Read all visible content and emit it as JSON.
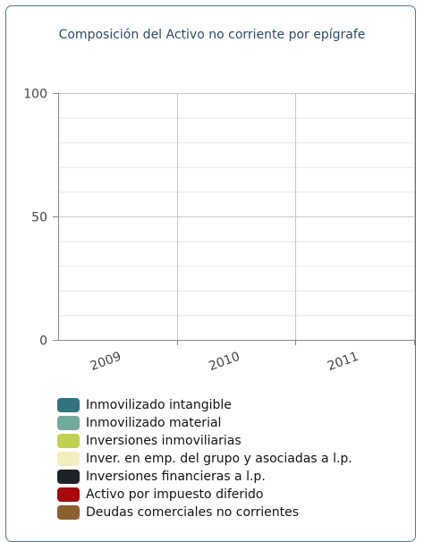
{
  "chart_data": {
    "type": "bar",
    "title": "Composición del Activo no corriente por epígrafe",
    "categories": [
      "2009",
      "2010",
      "2011"
    ],
    "ylim": [
      0,
      100
    ],
    "yticks": [
      0,
      50,
      100
    ],
    "grid": true,
    "legend_position": "bottom",
    "series": [
      {
        "name": "Inmovilizado intangible",
        "color": "#31737f",
        "values": [
          0,
          0,
          0
        ]
      },
      {
        "name": "Inmovilizado material",
        "color": "#72aa9d",
        "values": [
          0,
          0,
          0
        ]
      },
      {
        "name": "Inversiones inmoviliarias",
        "color": "#c1cf53",
        "values": [
          0,
          0,
          0
        ]
      },
      {
        "name": "Inver. en emp. del grupo y asociadas a l.p.",
        "color": "#f4edbd",
        "values": [
          0,
          0,
          0
        ]
      },
      {
        "name": "Inversiones financieras a l.p.",
        "color": "#1e2228",
        "values": [
          0,
          0,
          0
        ]
      },
      {
        "name": "Activo por impuesto diferido",
        "color": "#a60a0a",
        "values": [
          0,
          0,
          0
        ]
      },
      {
        "name": "Deudas comerciales no corrientes",
        "color": "#8d5e2e",
        "values": [
          0,
          0,
          0
        ]
      }
    ]
  }
}
